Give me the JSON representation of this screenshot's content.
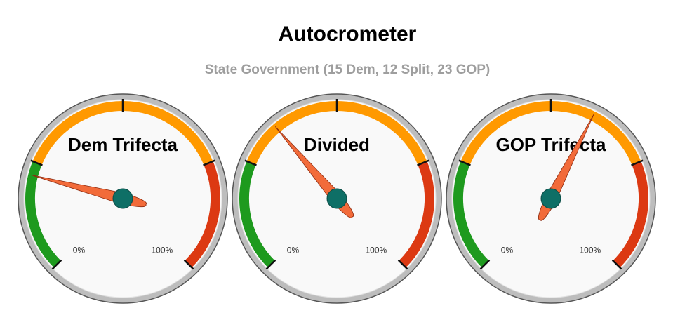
{
  "title": "Autocrometer",
  "subtitle": "State Government (15 Dem, 12 Split, 23 GOP)",
  "chart_data": [
    {
      "type": "gauge",
      "label": "Dem Trifecta",
      "value": 22,
      "lim": [
        0,
        100
      ],
      "ticks": [
        {
          "value": 0,
          "label": "0%"
        },
        {
          "value": 100,
          "label": "100%"
        }
      ],
      "minor_ticks": [
        25,
        50,
        75
      ],
      "bands": [
        {
          "from": 0,
          "to": 25,
          "color": "#1e9a1e"
        },
        {
          "from": 25,
          "to": 75,
          "color": "#ff9900"
        },
        {
          "from": 75,
          "to": 100,
          "color": "#dc3912"
        }
      ],
      "needle_color": "#f26b3a"
    },
    {
      "type": "gauge",
      "label": "Divided",
      "value": 35,
      "lim": [
        0,
        100
      ],
      "ticks": [
        {
          "value": 0,
          "label": "0%"
        },
        {
          "value": 100,
          "label": "100%"
        }
      ],
      "minor_ticks": [
        25,
        50,
        75
      ],
      "bands": [
        {
          "from": 0,
          "to": 25,
          "color": "#1e9a1e"
        },
        {
          "from": 25,
          "to": 75,
          "color": "#ff9900"
        },
        {
          "from": 75,
          "to": 100,
          "color": "#dc3912"
        }
      ],
      "needle_color": "#f26b3a"
    },
    {
      "type": "gauge",
      "label": "GOP Trifecta",
      "value": 60,
      "lim": [
        0,
        100
      ],
      "ticks": [
        {
          "value": 0,
          "label": "0%"
        },
        {
          "value": 100,
          "label": "100%"
        }
      ],
      "minor_ticks": [
        25,
        50,
        75
      ],
      "bands": [
        {
          "from": 0,
          "to": 25,
          "color": "#1e9a1e"
        },
        {
          "from": 25,
          "to": 75,
          "color": "#ff9900"
        },
        {
          "from": 75,
          "to": 100,
          "color": "#dc3912"
        }
      ],
      "needle_color": "#f26b3a"
    }
  ]
}
